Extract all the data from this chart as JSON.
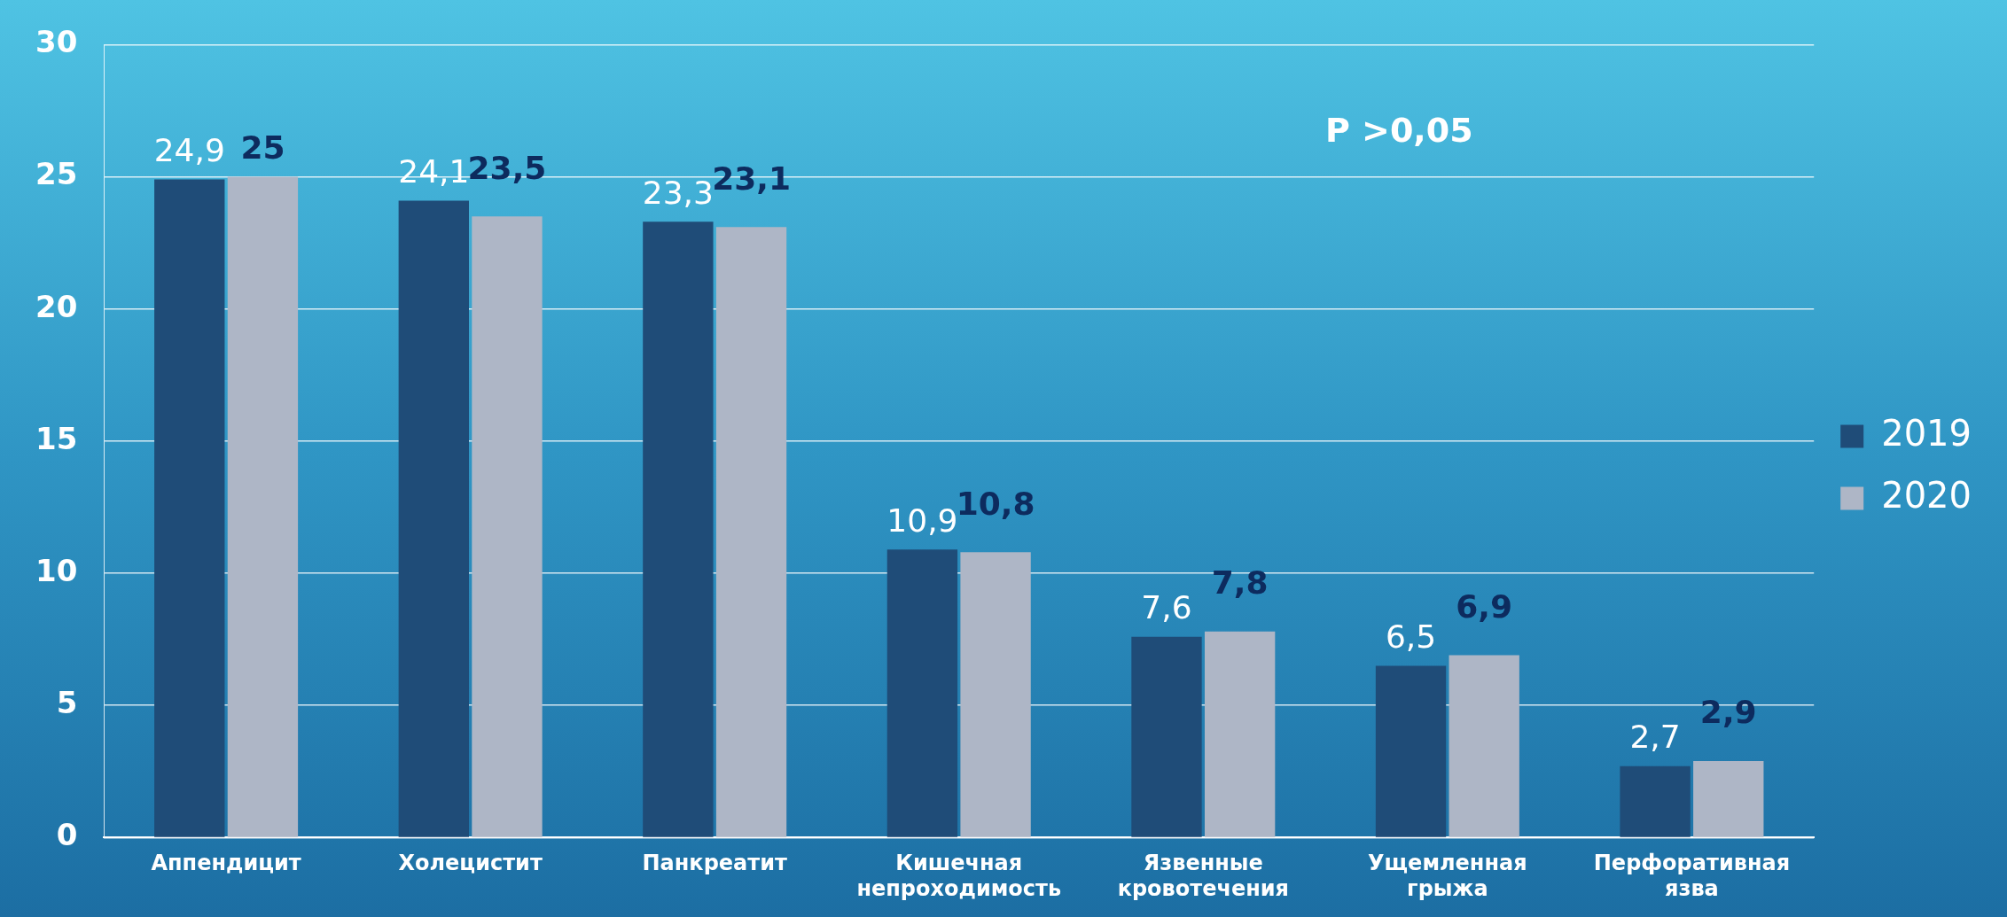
{
  "chart_data": {
    "type": "bar",
    "categories": [
      "Аппендицит",
      "Холецистит",
      "Панкреатит",
      "Кишечная непроходимость",
      "Язвенные кровотечения",
      "Ущемленная грыжа",
      "Перфоративная язва"
    ],
    "series": [
      {
        "name": "2019",
        "color": "#1f4c78",
        "values": [
          24.9,
          24.1,
          23.3,
          10.9,
          7.6,
          6.5,
          2.7
        ],
        "value_labels": [
          "24,9",
          "24,1",
          "23,3",
          "10,9",
          "7,6",
          "6,5",
          "2,7"
        ]
      },
      {
        "name": "2020",
        "color": "#aeb6c6",
        "values": [
          25,
          23.5,
          23.1,
          10.8,
          7.8,
          6.9,
          2.9
        ],
        "value_labels": [
          "25",
          "23,5",
          "23,1",
          "10,8",
          "7,8",
          "6,9",
          "2,9"
        ]
      }
    ],
    "ylim": [
      0,
      30
    ],
    "yticks": [
      0,
      5,
      10,
      15,
      20,
      25,
      30
    ],
    "grid": "y",
    "legend": "right",
    "annotations": [
      {
        "text": "P >0,05"
      }
    ]
  }
}
